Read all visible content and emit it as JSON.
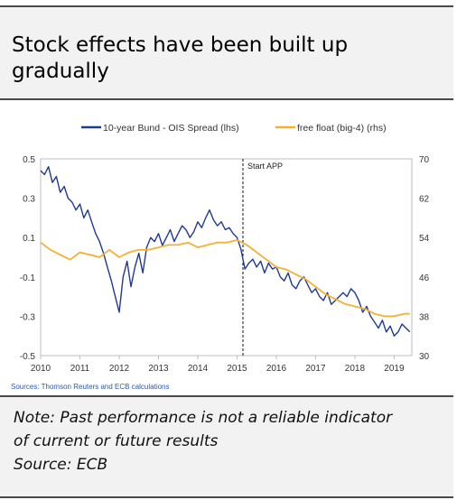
{
  "title_line1": "Stock effects have been built up",
  "title_line2": "gradually",
  "note": {
    "line1": "Note: Past performance is not a reliable indicator",
    "line2": "of current or future results",
    "line3": "Source: ECB"
  },
  "chart_data": {
    "type": "line",
    "source": "Sources: Thomson Reuters and ECB calculations",
    "annotation": {
      "label": "Start APP",
      "x": 2015.15
    },
    "x_ticks": [
      "2010",
      "2011",
      "2012",
      "2013",
      "2014",
      "2015",
      "2016",
      "2017",
      "2018",
      "2019"
    ],
    "xlim": [
      2010,
      2019.45
    ],
    "y_left": {
      "lim": [
        -0.5,
        0.5
      ],
      "ticks": [
        "0.5",
        "0.3",
        "0.1",
        "-0.1",
        "-0.3",
        "-0.5"
      ]
    },
    "y_right": {
      "lim": [
        30,
        70
      ],
      "ticks": [
        "70",
        "62",
        "54",
        "46",
        "38",
        "30"
      ]
    },
    "grid": false,
    "legend_position": "top-center",
    "series": [
      {
        "name": "10-year Bund - OIS Spread (lhs)",
        "axis": "left",
        "color": "#1f3a93",
        "x": [
          2010.0,
          2010.1,
          2010.2,
          2010.3,
          2010.4,
          2010.5,
          2010.6,
          2010.7,
          2010.8,
          2010.9,
          2011.0,
          2011.1,
          2011.2,
          2011.3,
          2011.4,
          2011.5,
          2011.6,
          2011.7,
          2011.8,
          2011.9,
          2012.0,
          2012.1,
          2012.2,
          2012.3,
          2012.4,
          2012.5,
          2012.6,
          2012.7,
          2012.8,
          2012.9,
          2013.0,
          2013.1,
          2013.2,
          2013.3,
          2013.4,
          2013.5,
          2013.6,
          2013.7,
          2013.8,
          2013.9,
          2014.0,
          2014.1,
          2014.2,
          2014.3,
          2014.4,
          2014.5,
          2014.6,
          2014.7,
          2014.8,
          2014.9,
          2015.0,
          2015.1,
          2015.2,
          2015.3,
          2015.4,
          2015.5,
          2015.6,
          2015.7,
          2015.8,
          2015.9,
          2016.0,
          2016.1,
          2016.2,
          2016.3,
          2016.4,
          2016.5,
          2016.6,
          2016.7,
          2016.8,
          2016.9,
          2017.0,
          2017.1,
          2017.2,
          2017.3,
          2017.4,
          2017.5,
          2017.6,
          2017.7,
          2017.8,
          2017.9,
          2018.0,
          2018.1,
          2018.2,
          2018.3,
          2018.4,
          2018.5,
          2018.6,
          2018.7,
          2018.8,
          2018.9,
          2019.0,
          2019.1,
          2019.2,
          2019.3,
          2019.4
        ],
        "y": [
          0.44,
          0.42,
          0.46,
          0.38,
          0.41,
          0.33,
          0.36,
          0.3,
          0.28,
          0.24,
          0.27,
          0.2,
          0.24,
          0.18,
          0.12,
          0.08,
          0.02,
          -0.05,
          -0.12,
          -0.2,
          -0.28,
          -0.1,
          -0.02,
          -0.15,
          -0.05,
          0.02,
          -0.08,
          0.05,
          0.1,
          0.08,
          0.12,
          0.06,
          0.1,
          0.14,
          0.08,
          0.12,
          0.16,
          0.14,
          0.1,
          0.13,
          0.18,
          0.15,
          0.2,
          0.24,
          0.19,
          0.16,
          0.18,
          0.14,
          0.15,
          0.12,
          0.1,
          0.04,
          -0.06,
          -0.03,
          -0.01,
          -0.05,
          -0.02,
          -0.08,
          -0.03,
          -0.06,
          -0.05,
          -0.1,
          -0.12,
          -0.08,
          -0.14,
          -0.16,
          -0.12,
          -0.1,
          -0.14,
          -0.18,
          -0.16,
          -0.2,
          -0.22,
          -0.18,
          -0.24,
          -0.22,
          -0.2,
          -0.18,
          -0.2,
          -0.16,
          -0.18,
          -0.22,
          -0.28,
          -0.25,
          -0.3,
          -0.33,
          -0.36,
          -0.32,
          -0.38,
          -0.35,
          -0.4,
          -0.38,
          -0.34,
          -0.36,
          -0.38
        ]
      },
      {
        "name": "free float (big-4) (rhs)",
        "axis": "right",
        "color": "#f2b134",
        "x": [
          2010.0,
          2010.25,
          2010.5,
          2010.75,
          2011.0,
          2011.25,
          2011.5,
          2011.75,
          2012.0,
          2012.25,
          2012.5,
          2012.75,
          2013.0,
          2013.25,
          2013.5,
          2013.75,
          2014.0,
          2014.25,
          2014.5,
          2014.75,
          2015.0,
          2015.25,
          2015.5,
          2015.75,
          2016.0,
          2016.25,
          2016.5,
          2016.75,
          2017.0,
          2017.25,
          2017.5,
          2017.75,
          2018.0,
          2018.25,
          2018.5,
          2018.75,
          2019.0,
          2019.25,
          2019.4
        ],
        "y": [
          53.0,
          51.5,
          50.5,
          49.5,
          51.0,
          50.5,
          50.0,
          51.5,
          50.0,
          51.0,
          51.5,
          51.5,
          52.0,
          52.5,
          52.5,
          53.0,
          52.0,
          52.5,
          53.0,
          53.0,
          53.5,
          52.5,
          51.0,
          49.5,
          48.0,
          47.5,
          46.5,
          45.5,
          44.0,
          42.5,
          41.5,
          40.5,
          40.0,
          39.5,
          38.5,
          38.0,
          38.0,
          38.5,
          38.5
        ]
      }
    ]
  }
}
